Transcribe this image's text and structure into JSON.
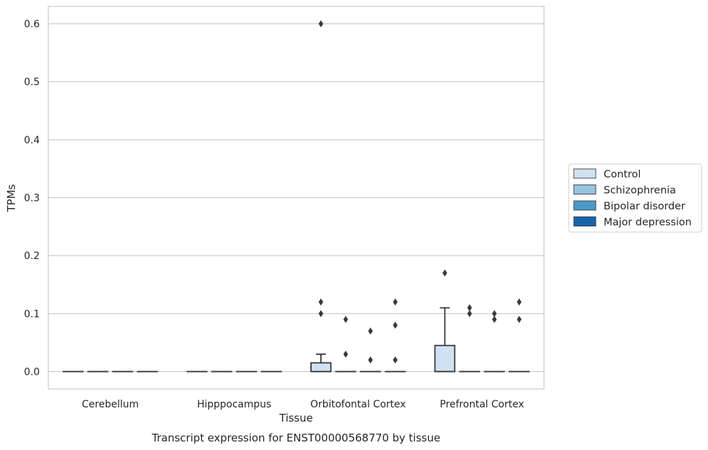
{
  "chart_data": {
    "type": "box",
    "title": "Transcript expression for ENST00000568770 by tissue",
    "xlabel": "Tissue",
    "ylabel": "TPMs",
    "ylim": [
      -0.03,
      0.63
    ],
    "yticks": [
      0.0,
      0.1,
      0.2,
      0.3,
      0.4,
      0.5,
      0.6
    ],
    "ytick_labels": [
      "0.0",
      "0.1",
      "0.2",
      "0.3",
      "0.4",
      "0.5",
      "0.6"
    ],
    "grid": true,
    "legend_position": "right",
    "categories": [
      "Cerebellum",
      "Hipppocampus",
      "Orbitofontal Cortex",
      "Prefrontal Cortex"
    ],
    "series": [
      {
        "name": "Control",
        "color": "#d0e1f2",
        "boxes": [
          {
            "q1": 0,
            "median": 0,
            "q3": 0,
            "whisker_low": 0,
            "whisker_high": 0,
            "outliers": []
          },
          {
            "q1": 0,
            "median": 0,
            "q3": 0,
            "whisker_low": 0,
            "whisker_high": 0,
            "outliers": []
          },
          {
            "q1": 0,
            "median": 0,
            "q3": 0.015,
            "whisker_low": 0,
            "whisker_high": 0.03,
            "outliers": [
              0.1,
              0.12,
              0.6
            ]
          },
          {
            "q1": 0,
            "median": 0,
            "q3": 0.045,
            "whisker_low": 0,
            "whisker_high": 0.11,
            "outliers": [
              0.17
            ]
          }
        ]
      },
      {
        "name": "Schizophrenia",
        "color": "#94c4df",
        "boxes": [
          {
            "q1": 0,
            "median": 0,
            "q3": 0,
            "whisker_low": 0,
            "whisker_high": 0,
            "outliers": []
          },
          {
            "q1": 0,
            "median": 0,
            "q3": 0,
            "whisker_low": 0,
            "whisker_high": 0,
            "outliers": []
          },
          {
            "q1": 0,
            "median": 0,
            "q3": 0,
            "whisker_low": 0,
            "whisker_high": 0,
            "outliers": [
              0.03,
              0.09
            ]
          },
          {
            "q1": 0,
            "median": 0,
            "q3": 0,
            "whisker_low": 0,
            "whisker_high": 0,
            "outliers": [
              0.1,
              0.11
            ]
          }
        ]
      },
      {
        "name": "Bipolar disorder",
        "color": "#4a98c9",
        "boxes": [
          {
            "q1": 0,
            "median": 0,
            "q3": 0,
            "whisker_low": 0,
            "whisker_high": 0,
            "outliers": []
          },
          {
            "q1": 0,
            "median": 0,
            "q3": 0,
            "whisker_low": 0,
            "whisker_high": 0,
            "outliers": []
          },
          {
            "q1": 0,
            "median": 0,
            "q3": 0,
            "whisker_low": 0,
            "whisker_high": 0,
            "outliers": [
              0.02,
              0.07
            ]
          },
          {
            "q1": 0,
            "median": 0,
            "q3": 0,
            "whisker_low": 0,
            "whisker_high": 0,
            "outliers": [
              0.09,
              0.1
            ]
          }
        ]
      },
      {
        "name": "Major depression",
        "color": "#1764ab",
        "boxes": [
          {
            "q1": 0,
            "median": 0,
            "q3": 0,
            "whisker_low": 0,
            "whisker_high": 0,
            "outliers": []
          },
          {
            "q1": 0,
            "median": 0,
            "q3": 0,
            "whisker_low": 0,
            "whisker_high": 0,
            "outliers": []
          },
          {
            "q1": 0,
            "median": 0,
            "q3": 0,
            "whisker_low": 0,
            "whisker_high": 0,
            "outliers": [
              0.02,
              0.08,
              0.12
            ]
          },
          {
            "q1": 0,
            "median": 0,
            "q3": 0,
            "whisker_low": 0,
            "whisker_high": 0,
            "outliers": [
              0.09,
              0.12
            ]
          }
        ]
      }
    ]
  },
  "colors": {
    "grid": "#cccccc",
    "frame": "#cccccc",
    "box_edge": "#3a3a3a",
    "text": "#262626"
  }
}
